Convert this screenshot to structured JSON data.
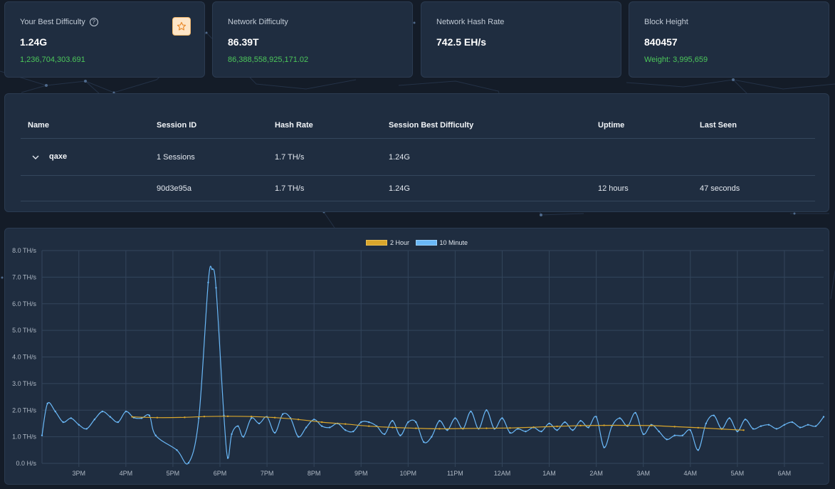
{
  "stats": [
    {
      "label": "Your Best Difficulty",
      "value": "1.24G",
      "sub": "1,236,704,303.691",
      "help_icon": "question-circle-icon",
      "action_icon": "star-icon"
    },
    {
      "label": "Network Difficulty",
      "value": "86.39T",
      "sub": "86,388,558,925,171.02"
    },
    {
      "label": "Network Hash Rate",
      "value": "742.5 EH/s",
      "sub": ""
    },
    {
      "label": "Block Height",
      "value": "840457",
      "sub": "Weight: 3,995,659"
    }
  ],
  "workers_table": {
    "headers": [
      "Name",
      "Session ID",
      "Hash Rate",
      "Session Best Difficulty",
      "Uptime",
      "Last Seen"
    ],
    "worker": {
      "name": "qaxe",
      "session_id": "1 Sessions",
      "hash_rate": "1.7 TH/s",
      "best_difficulty": "1.24G",
      "uptime": "",
      "last_seen": "",
      "expand_icon": "chevron-down-icon"
    },
    "sessions": [
      {
        "name": "",
        "session_id": "90d3e95a",
        "hash_rate": "1.7 TH/s",
        "best_difficulty": "1.24G",
        "uptime": "12 hours",
        "last_seen": "47 seconds"
      }
    ]
  },
  "colors": {
    "accent_green": "#4cc75a",
    "series_2h": "#d9a62c",
    "series_10m": "#6ab8f7"
  },
  "chart_data": {
    "type": "line",
    "ylim": [
      0,
      8
    ],
    "y_ticks": [
      "0.0 H/s",
      "1.0 TH/s",
      "2.0 TH/s",
      "3.0 TH/s",
      "4.0 TH/s",
      "5.0 TH/s",
      "6.0 TH/s",
      "7.0 TH/s",
      "8.0 TH/s"
    ],
    "x_ticks": [
      "3PM",
      "4PM",
      "5PM",
      "6PM",
      "7PM",
      "8PM",
      "9PM",
      "10PM",
      "11PM",
      "12AM",
      "1AM",
      "2AM",
      "3AM",
      "4AM",
      "5AM",
      "6AM"
    ],
    "grid": true,
    "legend_position": "top-center",
    "x_start": "2:13PM",
    "x_end": "6:50AM",
    "series": [
      {
        "name": "2 Hour",
        "color": "#d9a62c",
        "points": [
          [
            "4:08PM",
            1.75
          ],
          [
            "4:40PM",
            1.72
          ],
          [
            "5:15PM",
            1.73
          ],
          [
            "5:40PM",
            1.76
          ],
          [
            "6:10PM",
            1.77
          ],
          [
            "6:40PM",
            1.76
          ],
          [
            "7:10PM",
            1.72
          ],
          [
            "7:40PM",
            1.65
          ],
          [
            "8:10PM",
            1.55
          ],
          [
            "8:40PM",
            1.48
          ],
          [
            "9:10PM",
            1.4
          ],
          [
            "9:40PM",
            1.35
          ],
          [
            "10:10PM",
            1.32
          ],
          [
            "10:40PM",
            1.3
          ],
          [
            "11:10PM",
            1.31
          ],
          [
            "11:40PM",
            1.32
          ],
          [
            "12:10AM",
            1.33
          ],
          [
            "12:40AM",
            1.36
          ],
          [
            "1:10AM",
            1.39
          ],
          [
            "1:40AM",
            1.42
          ],
          [
            "2:10AM",
            1.43
          ],
          [
            "2:40AM",
            1.43
          ],
          [
            "3:10AM",
            1.42
          ],
          [
            "3:40AM",
            1.38
          ],
          [
            "4:10AM",
            1.34
          ],
          [
            "4:40AM",
            1.29
          ],
          [
            "5:08AM",
            1.25
          ]
        ]
      },
      {
        "name": "10 Minute",
        "color": "#6ab8f7",
        "points": [
          [
            "2:13PM",
            1.05
          ],
          [
            "2:20PM",
            2.25
          ],
          [
            "2:30PM",
            1.95
          ],
          [
            "2:40PM",
            1.55
          ],
          [
            "2:50PM",
            1.7
          ],
          [
            "3:00PM",
            1.45
          ],
          [
            "3:10PM",
            1.3
          ],
          [
            "3:20PM",
            1.65
          ],
          [
            "3:30PM",
            1.95
          ],
          [
            "3:40PM",
            1.75
          ],
          [
            "3:50PM",
            1.55
          ],
          [
            "4:00PM",
            1.95
          ],
          [
            "4:10PM",
            1.72
          ],
          [
            "4:20PM",
            1.7
          ],
          [
            "4:30PM",
            1.8
          ],
          [
            "4:38PM",
            1.05
          ],
          [
            "5:05PM",
            0.5
          ],
          [
            "5:20PM",
            0.02
          ],
          [
            "5:33PM",
            1.7
          ],
          [
            "5:45PM",
            6.8
          ],
          [
            "5:50PM",
            7.3
          ],
          [
            "5:55PM",
            6.6
          ],
          [
            "6:05PM",
            1.8
          ],
          [
            "6:10PM",
            0.2
          ],
          [
            "6:15PM",
            1.1
          ],
          [
            "6:23PM",
            1.4
          ],
          [
            "6:30PM",
            1.0
          ],
          [
            "6:40PM",
            1.7
          ],
          [
            "6:50PM",
            1.5
          ],
          [
            "7:00PM",
            1.75
          ],
          [
            "7:10PM",
            1.15
          ],
          [
            "7:20PM",
            1.85
          ],
          [
            "7:30PM",
            1.7
          ],
          [
            "7:40PM",
            1.0
          ],
          [
            "7:50PM",
            1.35
          ],
          [
            "8:00PM",
            1.65
          ],
          [
            "8:10PM",
            1.4
          ],
          [
            "8:20PM",
            1.35
          ],
          [
            "8:30PM",
            1.5
          ],
          [
            "8:40PM",
            1.25
          ],
          [
            "8:50PM",
            1.2
          ],
          [
            "9:00PM",
            1.55
          ],
          [
            "9:10PM",
            1.55
          ],
          [
            "9:20PM",
            1.4
          ],
          [
            "9:30PM",
            1.1
          ],
          [
            "9:40PM",
            1.6
          ],
          [
            "9:50PM",
            1.05
          ],
          [
            "10:00PM",
            1.55
          ],
          [
            "10:10PM",
            1.55
          ],
          [
            "10:20PM",
            0.8
          ],
          [
            "10:30PM",
            1.0
          ],
          [
            "10:40PM",
            1.6
          ],
          [
            "10:50PM",
            1.25
          ],
          [
            "11:00PM",
            1.7
          ],
          [
            "11:10PM",
            1.3
          ],
          [
            "11:20PM",
            1.95
          ],
          [
            "11:30PM",
            1.3
          ],
          [
            "11:40PM",
            2.0
          ],
          [
            "11:50PM",
            1.3
          ],
          [
            "12:00AM",
            1.7
          ],
          [
            "12:10AM",
            1.15
          ],
          [
            "12:20AM",
            1.3
          ],
          [
            "12:30AM",
            1.2
          ],
          [
            "12:40AM",
            1.35
          ],
          [
            "12:50AM",
            1.2
          ],
          [
            "1:00AM",
            1.5
          ],
          [
            "1:10AM",
            1.25
          ],
          [
            "1:20AM",
            1.55
          ],
          [
            "1:30AM",
            1.25
          ],
          [
            "1:40AM",
            1.6
          ],
          [
            "1:50AM",
            1.35
          ],
          [
            "2:00AM",
            1.75
          ],
          [
            "2:10AM",
            0.6
          ],
          [
            "2:20AM",
            1.4
          ],
          [
            "2:30AM",
            1.7
          ],
          [
            "2:40AM",
            1.4
          ],
          [
            "2:50AM",
            1.9
          ],
          [
            "3:00AM",
            1.1
          ],
          [
            "3:10AM",
            1.45
          ],
          [
            "3:20AM",
            1.2
          ],
          [
            "3:30AM",
            0.9
          ],
          [
            "3:40AM",
            1.05
          ],
          [
            "3:50AM",
            1.05
          ],
          [
            "4:00AM",
            1.25
          ],
          [
            "4:10AM",
            0.5
          ],
          [
            "4:20AM",
            1.5
          ],
          [
            "4:30AM",
            1.8
          ],
          [
            "4:40AM",
            1.3
          ],
          [
            "4:50AM",
            1.7
          ],
          [
            "5:00AM",
            1.2
          ],
          [
            "5:10AM",
            1.65
          ],
          [
            "5:20AM",
            1.3
          ],
          [
            "5:30AM",
            1.4
          ],
          [
            "5:40AM",
            1.45
          ],
          [
            "5:50AM",
            1.3
          ],
          [
            "6:00AM",
            1.45
          ],
          [
            "6:10AM",
            1.55
          ],
          [
            "6:20AM",
            1.35
          ],
          [
            "6:30AM",
            1.45
          ],
          [
            "6:40AM",
            1.4
          ],
          [
            "6:50AM",
            1.75
          ]
        ]
      }
    ]
  }
}
